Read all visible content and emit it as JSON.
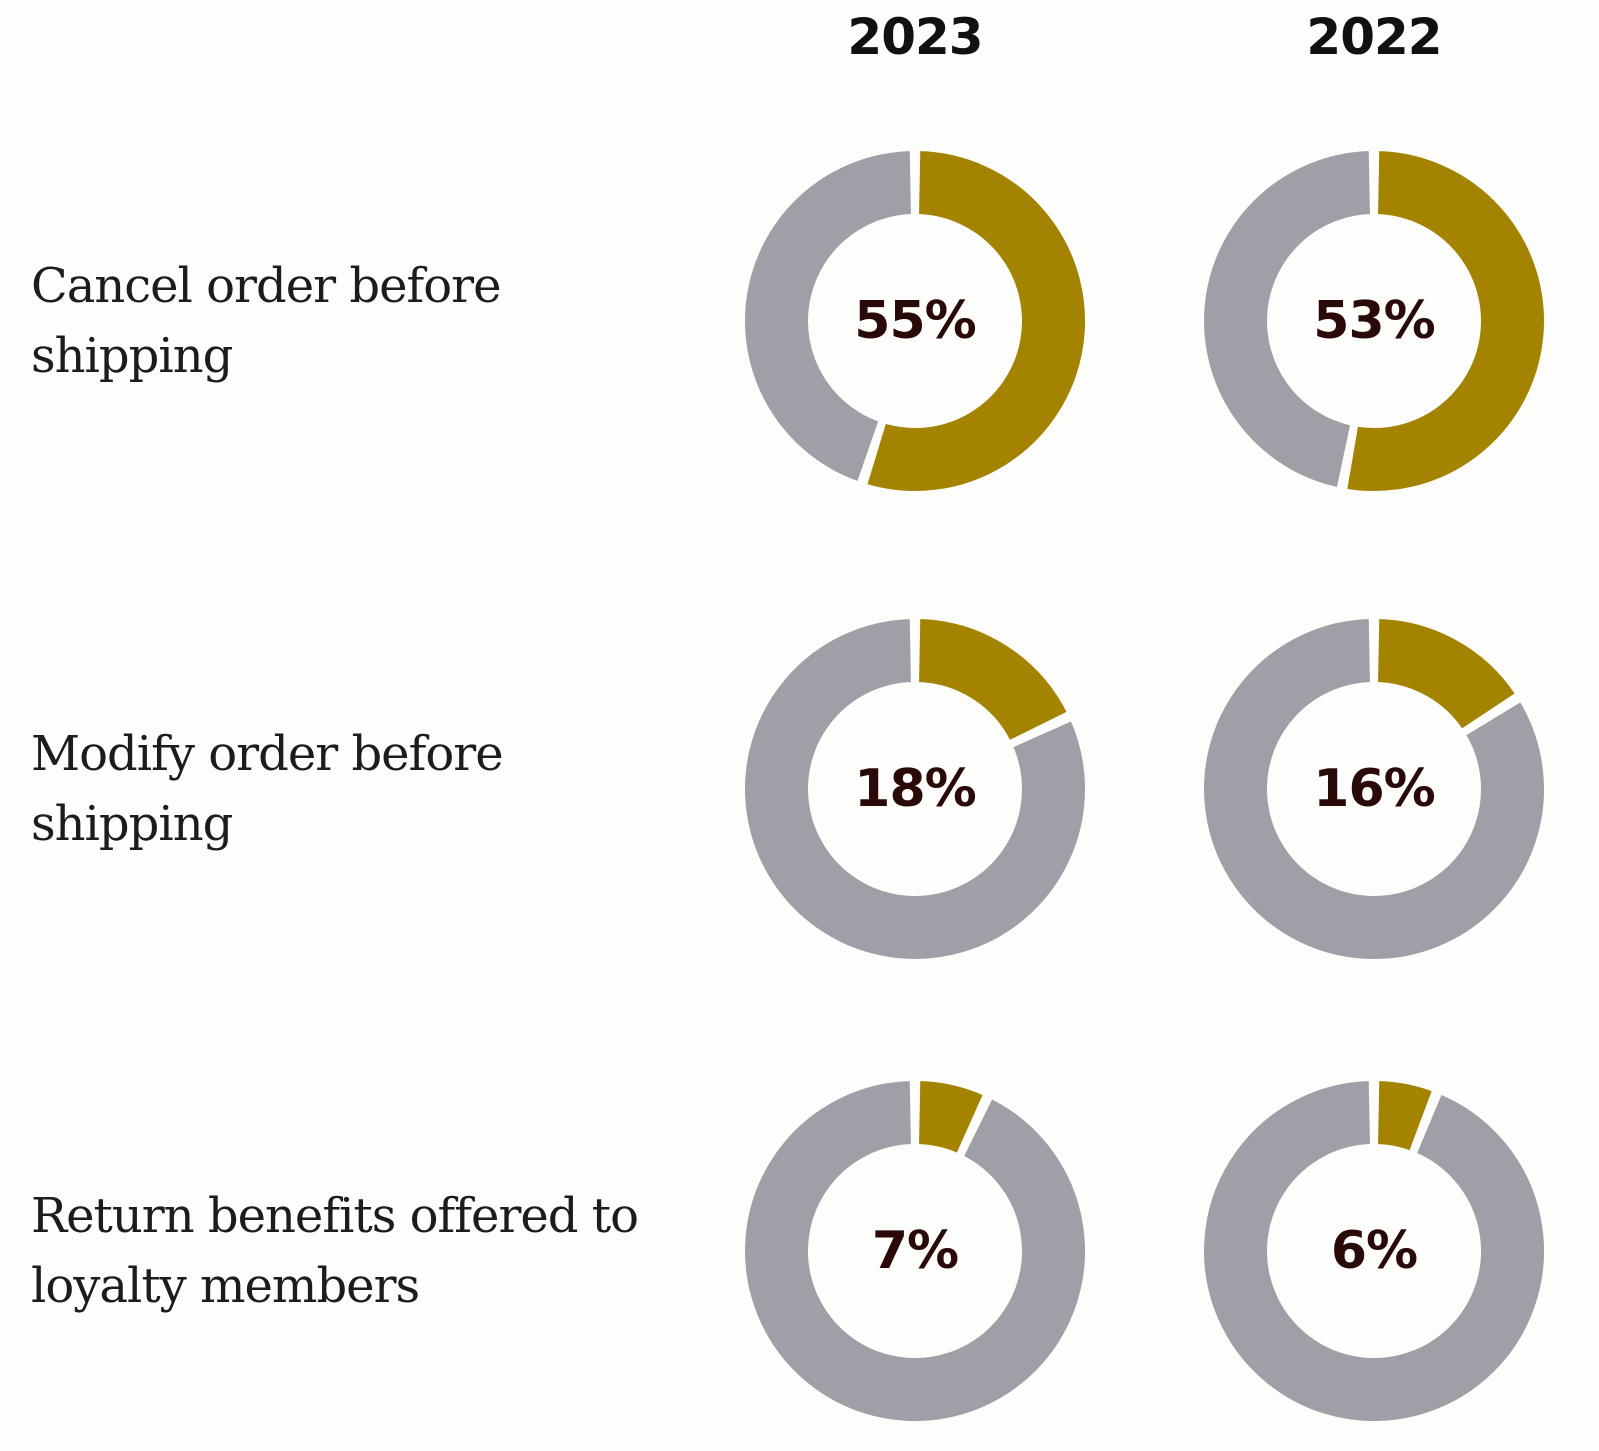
{
  "chart_data": {
    "type": "donut",
    "columns": [
      "2023",
      "2022"
    ],
    "rows": [
      {
        "label": "Cancel order before shipping",
        "values": [
          55,
          53
        ],
        "value_labels": [
          "55%",
          "53%"
        ]
      },
      {
        "label": "Modify order before shipping",
        "values": [
          18,
          16
        ],
        "value_labels": [
          "18%",
          "16%"
        ]
      },
      {
        "label": "Return benefits offered to loyalty members",
        "values": [
          7,
          6
        ],
        "value_labels": [
          "7%",
          "6%"
        ]
      }
    ],
    "max_value": 100,
    "colors": {
      "value": "#a48300",
      "remainder": "#9fa0a7",
      "label": "#2a0a08",
      "background": "#fdfdfc"
    }
  }
}
